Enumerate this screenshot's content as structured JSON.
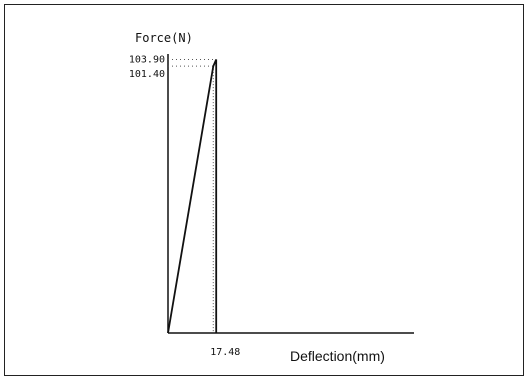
{
  "chart_data": {
    "type": "line",
    "title": "",
    "xlabel": "Deflection(mm)",
    "ylabel": "Force(N)",
    "series": [
      {
        "x": [
          0,
          17.48,
          18.6,
          18.6
        ],
        "y": [
          0,
          101.4,
          103.9,
          0
        ]
      }
    ],
    "annotations": {
      "y_marks": [
        "103.90",
        "101.40"
      ],
      "x_marks": [
        "17.48"
      ]
    },
    "xlim": [
      0,
      95
    ],
    "ylim": [
      0,
      106
    ],
    "grid": false
  }
}
